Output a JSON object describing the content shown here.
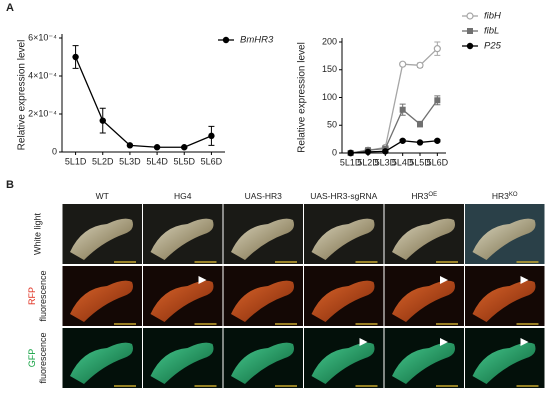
{
  "chart_data": [
    {
      "type": "line",
      "panel": "A",
      "y_label": "Relative expression level",
      "categories": [
        "5L1D",
        "5L2D",
        "5L3D",
        "5L4D",
        "5L5D",
        "5L6D"
      ],
      "series": [
        {
          "name": "BmHR3",
          "color": "#000000",
          "marker": "circle",
          "values": [
            0.0005,
            0.000165,
            3.5e-05,
            2.5e-05,
            2.5e-05,
            8.5e-05
          ],
          "errors": [
            6e-05,
            6.5e-05,
            3e-06,
            3e-06,
            3e-06,
            5e-05
          ]
        }
      ],
      "ylim": [
        0,
        0.0006
      ],
      "yticks": [
        0,
        {
          "value": 0.0002,
          "label": "2×10⁻⁴"
        },
        {
          "value": 0.0004,
          "label": "4×10⁻⁴"
        },
        {
          "value": 0.0006,
          "label": "6×10⁻⁴"
        }
      ]
    },
    {
      "type": "line",
      "y_label": "Relative expression level",
      "categories": [
        "5L1D",
        "5L2D",
        "5L3D",
        "5L4D",
        "5L5D",
        "5L6D"
      ],
      "series": [
        {
          "name": "fibH",
          "color": "#a6a6a6",
          "marker": "open-circle",
          "values": [
            0,
            5,
            10,
            160,
            158,
            188
          ],
          "errors": [
            0,
            2,
            3,
            3,
            4,
            12
          ]
        },
        {
          "name": "fibL",
          "color": "#707070",
          "marker": "square",
          "values": [
            0,
            5,
            8,
            78,
            52,
            95
          ],
          "errors": [
            0,
            2,
            2,
            10,
            5,
            8
          ]
        },
        {
          "name": "P25",
          "color": "#000000",
          "marker": "circle",
          "values": [
            0,
            2,
            3,
            22,
            19,
            22
          ],
          "errors": [
            0,
            1,
            1,
            2,
            1,
            2
          ]
        }
      ],
      "ylim": [
        0,
        200
      ],
      "yticks": [
        0,
        50,
        100,
        150,
        200
      ]
    }
  ],
  "panel_b": {
    "label": "B",
    "columns": [
      {
        "text": "WT"
      },
      {
        "text": "HG4"
      },
      {
        "text": "UAS-HR3"
      },
      {
        "text": "UAS-HR3-sgRNA"
      },
      {
        "text": "HR3",
        "sup": "OE"
      },
      {
        "text": "HR3",
        "sup": "KO"
      }
    ],
    "rows": [
      {
        "lines": [
          "White light"
        ]
      },
      {
        "lines": [
          "RFP",
          "fluorescence"
        ]
      },
      {
        "lines": [
          "GFP",
          "fluorescence"
        ]
      }
    ]
  }
}
